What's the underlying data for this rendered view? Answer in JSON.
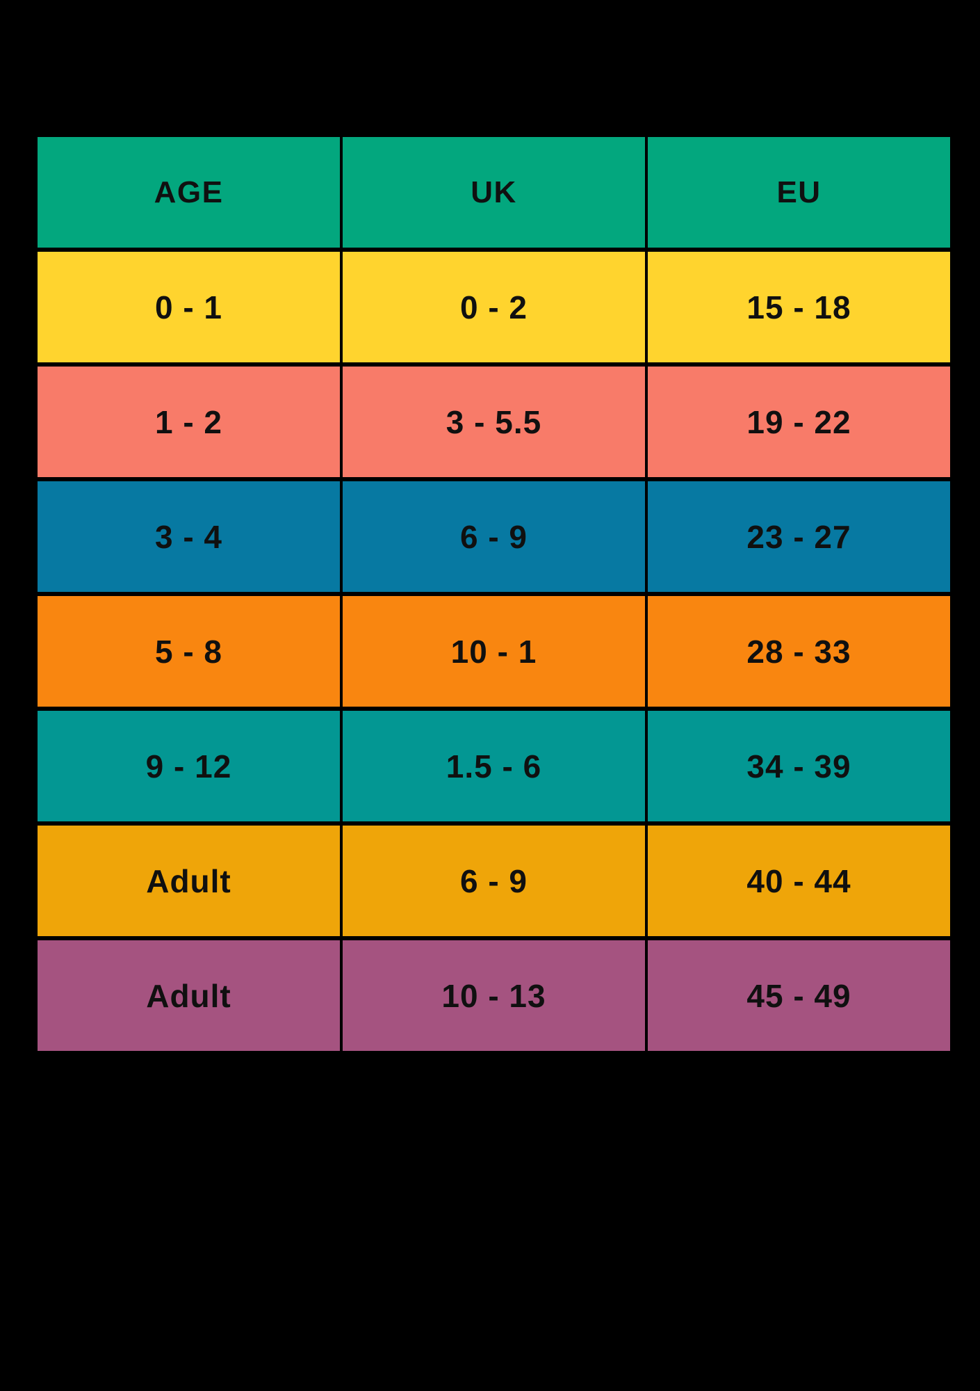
{
  "background_color": "#000000",
  "text_color": "#101010",
  "chart_data": {
    "type": "table",
    "title": "",
    "columns": [
      "AGE",
      "UK",
      "EU"
    ],
    "header_color": "#03A77E",
    "rows": [
      {
        "color": "#FFD42E",
        "values": [
          "0 - 1",
          "0 - 2",
          "15 - 18"
        ]
      },
      {
        "color": "#F87B69",
        "values": [
          "1 - 2",
          "3 - 5.5",
          "19 - 22"
        ]
      },
      {
        "color": "#0779A2",
        "values": [
          "3 - 4",
          "6 - 9",
          "23 - 27"
        ]
      },
      {
        "color": "#F98610",
        "values": [
          "5 - 8",
          "10 - 1",
          "28 - 33"
        ]
      },
      {
        "color": "#039793",
        "values": [
          "9 - 12",
          "1.5 - 6",
          "34 - 39"
        ]
      },
      {
        "color": "#EFA509",
        "values": [
          "Adult",
          "6 - 9",
          "40 - 44"
        ]
      },
      {
        "color": "#A55380",
        "values": [
          "Adult",
          "10 - 13",
          "45 - 49"
        ]
      }
    ]
  }
}
